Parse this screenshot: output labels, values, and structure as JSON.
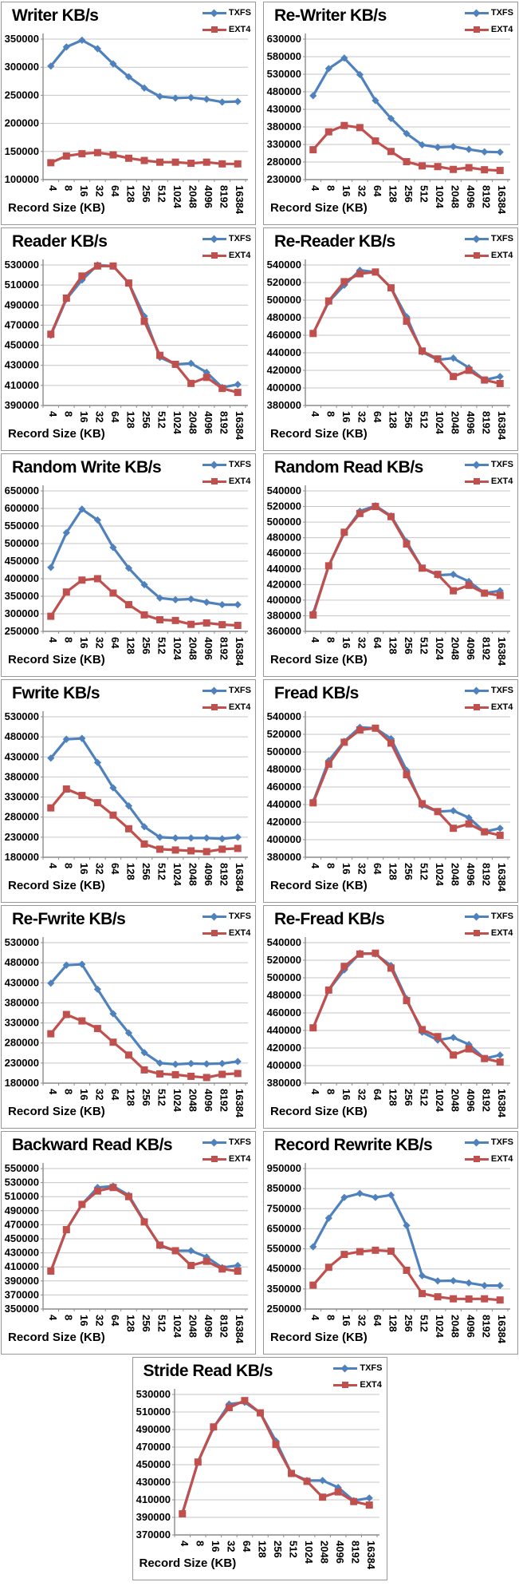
{
  "legend": {
    "txfs": "TXFS",
    "ext4": "EXT4"
  },
  "xlabel": "Record Size (KB)",
  "colors": {
    "txfs": "#4F81BD",
    "ext4": "#C0504D",
    "grid": "#C6C6C6",
    "axis": "#8C8C8C"
  },
  "categories": [
    4,
    8,
    16,
    32,
    64,
    128,
    256,
    512,
    1024,
    2048,
    4096,
    8192,
    16384
  ],
  "layout_hints": {
    "grid": "horizontal",
    "legend_position": "top-right",
    "x_tick_rotation": 90
  },
  "chart_data": [
    {
      "type": "line",
      "title": "Writer KB/s",
      "ylim": [
        100000,
        350000
      ],
      "ystep": 50000,
      "series": [
        {
          "name": "TXFS",
          "marker": "diamond",
          "values": [
            302000,
            336000,
            348000,
            333000,
            306000,
            283000,
            263000,
            248000,
            245000,
            246000,
            243000,
            238000,
            239000
          ]
        },
        {
          "name": "EXT4",
          "marker": "square",
          "values": [
            130000,
            142000,
            146000,
            148000,
            144000,
            138000,
            134000,
            131000,
            131000,
            129000,
            131000,
            128000,
            128000
          ]
        }
      ]
    },
    {
      "type": "line",
      "title": "Re-Writer KB/s",
      "ylim": [
        230000,
        630000
      ],
      "ystep": 50000,
      "series": [
        {
          "name": "TXFS",
          "marker": "diamond",
          "values": [
            469000,
            546000,
            576000,
            529000,
            455000,
            404000,
            361000,
            329000,
            322000,
            324000,
            316000,
            309000,
            308000
          ]
        },
        {
          "name": "EXT4",
          "marker": "square",
          "values": [
            315000,
            366000,
            384000,
            378000,
            340000,
            310000,
            281000,
            269000,
            267000,
            259000,
            264000,
            258000,
            256000
          ]
        }
      ]
    },
    {
      "type": "line",
      "title": "Reader KB/s",
      "ylim": [
        390000,
        530000
      ],
      "ystep": 20000,
      "series": [
        {
          "name": "TXFS",
          "marker": "diamond",
          "values": [
            460000,
            496000,
            515000,
            530000,
            529000,
            512000,
            479000,
            438000,
            431000,
            432000,
            423000,
            408000,
            411000
          ]
        },
        {
          "name": "EXT4",
          "marker": "square",
          "values": [
            461000,
            497000,
            519000,
            529000,
            529000,
            512000,
            474000,
            440000,
            431000,
            412000,
            418000,
            407000,
            403000
          ]
        }
      ]
    },
    {
      "type": "line",
      "title": "Re-Reader KB/s",
      "ylim": [
        380000,
        540000
      ],
      "ystep": 20000,
      "series": [
        {
          "name": "TXFS",
          "marker": "diamond",
          "values": [
            462000,
            498000,
            517000,
            534000,
            532000,
            514000,
            481000,
            441000,
            432000,
            434000,
            423000,
            409000,
            413000
          ]
        },
        {
          "name": "EXT4",
          "marker": "square",
          "values": [
            462000,
            499000,
            521000,
            530000,
            532000,
            514000,
            476000,
            442000,
            433000,
            413000,
            420000,
            409000,
            405000
          ]
        }
      ]
    },
    {
      "type": "line",
      "title": "Random Write KB/s",
      "ylim": [
        250000,
        650000
      ],
      "ystep": 50000,
      "series": [
        {
          "name": "TXFS",
          "marker": "diamond",
          "values": [
            432000,
            531000,
            598000,
            567000,
            489000,
            430000,
            383000,
            345000,
            340000,
            342000,
            333000,
            326000,
            326000
          ]
        },
        {
          "name": "EXT4",
          "marker": "square",
          "values": [
            293000,
            362000,
            396000,
            400000,
            359000,
            326000,
            297000,
            283000,
            281000,
            270000,
            274000,
            269000,
            267000
          ]
        }
      ]
    },
    {
      "type": "line",
      "title": "Random Read KB/s",
      "ylim": [
        360000,
        540000
      ],
      "ystep": 20000,
      "series": [
        {
          "name": "TXFS",
          "marker": "diamond",
          "values": [
            383000,
            444000,
            486000,
            514000,
            521000,
            508000,
            475000,
            441000,
            432000,
            433000,
            424000,
            409000,
            412000
          ]
        },
        {
          "name": "EXT4",
          "marker": "square",
          "values": [
            381000,
            444000,
            487000,
            511000,
            520000,
            507000,
            472000,
            441000,
            433000,
            412000,
            419000,
            409000,
            406000
          ]
        }
      ]
    },
    {
      "type": "line",
      "title": "Fwrite KB/s",
      "ylim": [
        180000,
        530000
      ],
      "ystep": 50000,
      "series": [
        {
          "name": "TXFS",
          "marker": "diamond",
          "values": [
            427000,
            474000,
            476000,
            416000,
            353000,
            308000,
            256000,
            230000,
            228000,
            228000,
            228000,
            226000,
            230000
          ]
        },
        {
          "name": "EXT4",
          "marker": "square",
          "values": [
            303000,
            350000,
            334000,
            316000,
            285000,
            251000,
            213000,
            200000,
            198000,
            196000,
            194000,
            200000,
            202000
          ]
        }
      ]
    },
    {
      "type": "line",
      "title": "Fread KB/s",
      "ylim": [
        380000,
        540000
      ],
      "ystep": 20000,
      "series": [
        {
          "name": "TXFS",
          "marker": "diamond",
          "values": [
            443000,
            490000,
            512000,
            528000,
            527000,
            515000,
            479000,
            439000,
            432000,
            433000,
            425000,
            409000,
            413000
          ]
        },
        {
          "name": "EXT4",
          "marker": "square",
          "values": [
            442000,
            486000,
            511000,
            525000,
            527000,
            510000,
            474000,
            441000,
            432000,
            413000,
            418000,
            409000,
            405000
          ]
        }
      ]
    },
    {
      "type": "line",
      "title": "Re-Fwrite KB/s",
      "ylim": [
        180000,
        530000
      ],
      "ystep": 50000,
      "series": [
        {
          "name": "TXFS",
          "marker": "diamond",
          "values": [
            429000,
            474000,
            476000,
            414000,
            353000,
            305000,
            256000,
            230000,
            227000,
            229000,
            228000,
            229000,
            234000
          ]
        },
        {
          "name": "EXT4",
          "marker": "square",
          "values": [
            303000,
            351000,
            335000,
            316000,
            282000,
            250000,
            213000,
            203000,
            201000,
            197000,
            194000,
            202000,
            204000
          ]
        }
      ]
    },
    {
      "type": "line",
      "title": "Re-Fread KB/s",
      "ylim": [
        380000,
        540000
      ],
      "ystep": 20000,
      "series": [
        {
          "name": "TXFS",
          "marker": "diamond",
          "values": [
            443000,
            486000,
            509000,
            528000,
            527000,
            514000,
            476000,
            438000,
            429000,
            432000,
            424000,
            408000,
            412000
          ]
        },
        {
          "name": "EXT4",
          "marker": "square",
          "values": [
            443000,
            486000,
            513000,
            527000,
            528000,
            511000,
            474000,
            441000,
            433000,
            412000,
            419000,
            408000,
            404000
          ]
        }
      ]
    },
    {
      "type": "line",
      "title": "Backward Read KB/s",
      "ylim": [
        350000,
        550000
      ],
      "ystep": 20000,
      "series": [
        {
          "name": "TXFS",
          "marker": "diamond",
          "values": [
            404000,
            463000,
            499000,
            523000,
            525000,
            512000,
            475000,
            440000,
            433000,
            433000,
            424000,
            409000,
            412000
          ]
        },
        {
          "name": "EXT4",
          "marker": "square",
          "values": [
            404000,
            463000,
            499000,
            518000,
            523000,
            510000,
            474000,
            441000,
            433000,
            412000,
            418000,
            407000,
            404000
          ]
        }
      ]
    },
    {
      "type": "line",
      "title": "Record Rewrite KB/s",
      "ylim": [
        250000,
        950000
      ],
      "ystep": 100000,
      "series": [
        {
          "name": "TXFS",
          "marker": "diamond",
          "values": [
            560000,
            703000,
            806000,
            826000,
            806000,
            818000,
            666000,
            416000,
            390000,
            391000,
            380000,
            367000,
            367000
          ]
        },
        {
          "name": "EXT4",
          "marker": "square",
          "values": [
            369000,
            458000,
            522000,
            536000,
            543000,
            538000,
            443000,
            327000,
            311000,
            301000,
            300000,
            301000,
            295000
          ]
        }
      ]
    },
    {
      "type": "line",
      "title": "Stride Read KB/s",
      "ylim": [
        370000,
        530000
      ],
      "ystep": 20000,
      "series": [
        {
          "name": "TXFS",
          "marker": "diamond",
          "values": [
            395000,
            453000,
            492000,
            519000,
            521000,
            509000,
            477000,
            440000,
            432000,
            432000,
            424000,
            409000,
            412000
          ]
        },
        {
          "name": "EXT4",
          "marker": "square",
          "values": [
            394000,
            453000,
            493000,
            515000,
            523000,
            509000,
            473000,
            440000,
            431000,
            413000,
            419000,
            408000,
            404000
          ]
        }
      ]
    }
  ]
}
